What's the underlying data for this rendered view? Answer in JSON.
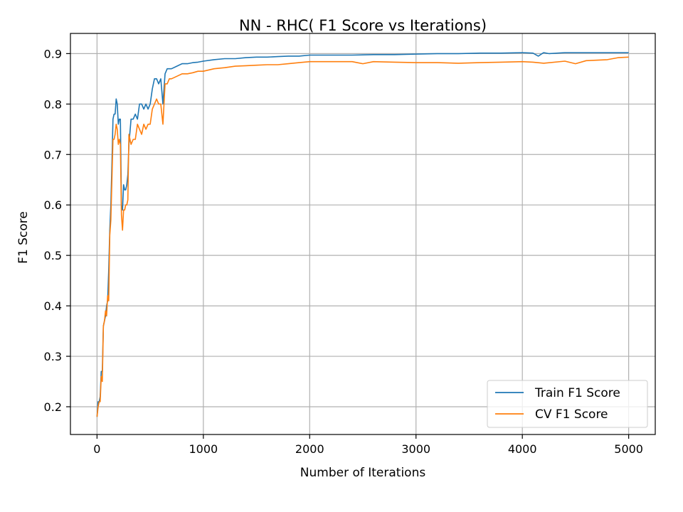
{
  "chart_data": {
    "type": "line",
    "title": "NN - RHC( F1 Score vs Iterations)",
    "xlabel": "Number of Iterations",
    "ylabel": "F1 Score",
    "xlim": [
      -250,
      5250
    ],
    "ylim": [
      0.145,
      0.94
    ],
    "xticks": [
      0,
      1000,
      2000,
      3000,
      4000,
      5000
    ],
    "yticks": [
      0.2,
      0.3,
      0.4,
      0.5,
      0.6,
      0.7,
      0.8,
      0.9
    ],
    "grid": true,
    "legend_position": "lower-right",
    "series": [
      {
        "name": "Train F1 Score",
        "color": "#1f77b4",
        "x": [
          0,
          10,
          20,
          30,
          40,
          50,
          60,
          70,
          80,
          90,
          100,
          110,
          120,
          130,
          140,
          150,
          160,
          170,
          180,
          190,
          200,
          210,
          220,
          230,
          240,
          250,
          260,
          270,
          280,
          290,
          300,
          320,
          340,
          360,
          380,
          400,
          420,
          440,
          460,
          480,
          500,
          520,
          540,
          560,
          580,
          600,
          620,
          640,
          660,
          680,
          700,
          750,
          800,
          850,
          900,
          950,
          1000,
          1100,
          1200,
          1300,
          1400,
          1500,
          1600,
          1700,
          1800,
          1900,
          2000,
          2200,
          2400,
          2600,
          2800,
          3000,
          3200,
          3400,
          3600,
          3800,
          4000,
          4100,
          4150,
          4200,
          4250,
          4400,
          4600,
          4800,
          5000
        ],
        "values": [
          0.18,
          0.21,
          0.21,
          0.22,
          0.27,
          0.27,
          0.36,
          0.37,
          0.38,
          0.4,
          0.41,
          0.47,
          0.55,
          0.6,
          0.68,
          0.77,
          0.78,
          0.78,
          0.81,
          0.8,
          0.76,
          0.77,
          0.77,
          0.6,
          0.59,
          0.64,
          0.63,
          0.63,
          0.64,
          0.66,
          0.72,
          0.77,
          0.77,
          0.78,
          0.77,
          0.8,
          0.8,
          0.79,
          0.8,
          0.79,
          0.8,
          0.83,
          0.85,
          0.85,
          0.84,
          0.85,
          0.8,
          0.86,
          0.87,
          0.87,
          0.87,
          0.875,
          0.88,
          0.88,
          0.882,
          0.883,
          0.885,
          0.888,
          0.89,
          0.89,
          0.892,
          0.893,
          0.893,
          0.894,
          0.895,
          0.895,
          0.897,
          0.897,
          0.897,
          0.898,
          0.898,
          0.899,
          0.9,
          0.9,
          0.901,
          0.901,
          0.902,
          0.901,
          0.895,
          0.902,
          0.9,
          0.902,
          0.902,
          0.902,
          0.902
        ]
      },
      {
        "name": "CV F1 Score",
        "color": "#ff7f0e",
        "x": [
          0,
          10,
          20,
          30,
          40,
          50,
          60,
          70,
          80,
          90,
          100,
          110,
          120,
          130,
          140,
          150,
          160,
          170,
          180,
          190,
          200,
          210,
          220,
          230,
          240,
          250,
          260,
          270,
          280,
          290,
          300,
          320,
          340,
          360,
          380,
          400,
          420,
          440,
          460,
          480,
          500,
          520,
          540,
          560,
          580,
          600,
          620,
          640,
          660,
          680,
          700,
          750,
          800,
          850,
          900,
          950,
          1000,
          1100,
          1200,
          1300,
          1400,
          1500,
          1600,
          1700,
          1800,
          1900,
          2000,
          2200,
          2400,
          2500,
          2600,
          2800,
          3000,
          3200,
          3400,
          3600,
          3800,
          4000,
          4100,
          4200,
          4400,
          4500,
          4600,
          4800,
          4900,
          5000
        ],
        "values": [
          0.18,
          0.2,
          0.21,
          0.21,
          0.26,
          0.25,
          0.36,
          0.37,
          0.39,
          0.38,
          0.42,
          0.41,
          0.54,
          0.57,
          0.65,
          0.73,
          0.73,
          0.74,
          0.76,
          0.75,
          0.72,
          0.73,
          0.72,
          0.58,
          0.55,
          0.59,
          0.59,
          0.6,
          0.6,
          0.61,
          0.74,
          0.72,
          0.73,
          0.73,
          0.76,
          0.75,
          0.74,
          0.76,
          0.75,
          0.76,
          0.76,
          0.79,
          0.8,
          0.81,
          0.8,
          0.8,
          0.76,
          0.84,
          0.84,
          0.85,
          0.85,
          0.855,
          0.86,
          0.86,
          0.862,
          0.865,
          0.865,
          0.87,
          0.872,
          0.875,
          0.876,
          0.877,
          0.878,
          0.878,
          0.88,
          0.882,
          0.884,
          0.884,
          0.884,
          0.88,
          0.884,
          0.883,
          0.882,
          0.882,
          0.881,
          0.882,
          0.883,
          0.884,
          0.883,
          0.881,
          0.885,
          0.88,
          0.886,
          0.888,
          0.892,
          0.893
        ]
      }
    ]
  }
}
